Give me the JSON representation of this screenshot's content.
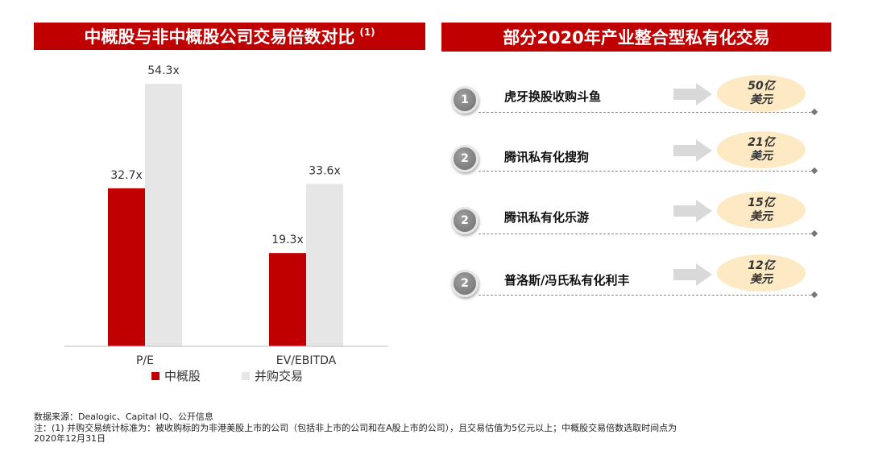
{
  "left_panel": {
    "title": "中概股与非中概股公司交易倍数对比",
    "title_note": "(1)"
  },
  "chart_data": {
    "type": "bar",
    "categories": [
      "P/E",
      "EV/EBITDA"
    ],
    "series": [
      {
        "name": "中概股",
        "values": [
          32.7,
          19.3
        ],
        "labels": [
          "32.7x",
          "19.3x"
        ],
        "color": "#c00000"
      },
      {
        "name": "并购交易",
        "values": [
          54.3,
          33.6
        ],
        "labels": [
          "54.3x",
          "33.6x"
        ],
        "color": "#e6e6e6"
      }
    ],
    "ylim": [
      0,
      60
    ],
    "grid": false,
    "legend_position": "bottom"
  },
  "right_panel": {
    "title": "部分2020年产业整合型私有化交易",
    "deals": [
      {
        "number": "1",
        "name": "虎牙换股收购斗鱼",
        "value_line1": "50亿",
        "value_line2": "美元"
      },
      {
        "number": "2",
        "name": "腾讯私有化搜狗",
        "value_line1": "21亿",
        "value_line2": "美元"
      },
      {
        "number": "2",
        "name": "腾讯私有化乐游",
        "value_line1": "15亿",
        "value_line2": "美元"
      },
      {
        "number": "2",
        "name": "普洛斯/冯氏私有化利丰",
        "value_line1": "12亿",
        "value_line2": "美元"
      }
    ]
  },
  "footer": {
    "source": "数据来源：Dealogic、Capital IQ、公开信息",
    "note_line1": "注：(1) 并购交易统计标准为：被收购标的为非港美股上市的公司（包括非上市的公司和在A股上市的公司），且交易估值为5亿元以上；中概股交易倍数选取时间点为",
    "note_line2": "2020年12月31日"
  }
}
